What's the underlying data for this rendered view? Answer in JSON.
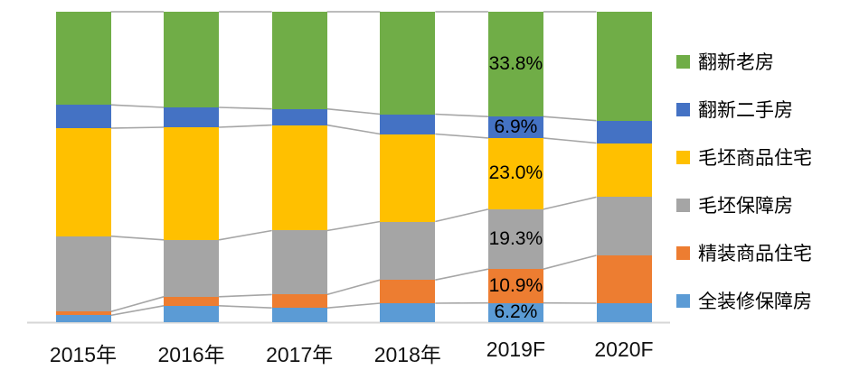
{
  "chart_data": {
    "type": "bar",
    "variant": "stacked-100-percent",
    "title": "",
    "xlabel": "",
    "ylabel": "",
    "grid": false,
    "legend_position": "right",
    "categories": [
      "2015年",
      "2016年",
      "2017年",
      "2018年",
      "2019F",
      "2020F"
    ],
    "series": [
      {
        "name": "翻新老房",
        "color": "#70AD47",
        "values": [
          30.0,
          30.8,
          31.3,
          33.0,
          33.8,
          35.1
        ]
      },
      {
        "name": "翻新二手房",
        "color": "#4472C4",
        "values": [
          7.5,
          6.4,
          5.2,
          6.4,
          6.9,
          7.2
        ]
      },
      {
        "name": "毛坯商品住宅",
        "color": "#FFC000",
        "values": [
          34.8,
          36.3,
          34.0,
          28.2,
          23.0,
          17.4
        ]
      },
      {
        "name": "毛坯保障房",
        "color": "#A5A5A5",
        "values": [
          24.3,
          18.3,
          20.6,
          18.8,
          19.3,
          18.8
        ]
      },
      {
        "name": "精装商品住宅",
        "color": "#ED7D31",
        "values": [
          1.2,
          2.9,
          4.3,
          7.5,
          10.9,
          15.4
        ]
      },
      {
        "name": "全装修保障房",
        "color": "#5B9BD5",
        "values": [
          2.2,
          5.3,
          4.6,
          6.1,
          6.2,
          6.1
        ]
      }
    ],
    "labeled_category": "2019F",
    "labeled_category_index": 4,
    "data_labels": [
      "33.8%",
      "6.9%",
      "23.0%",
      "19.3%",
      "10.9%",
      "6.2%"
    ],
    "colors": {
      "connector_line": "#A6A6A6",
      "axis_line": "#D6D6D6",
      "label_text": "#000000",
      "background": "#FFFFFF"
    }
  }
}
